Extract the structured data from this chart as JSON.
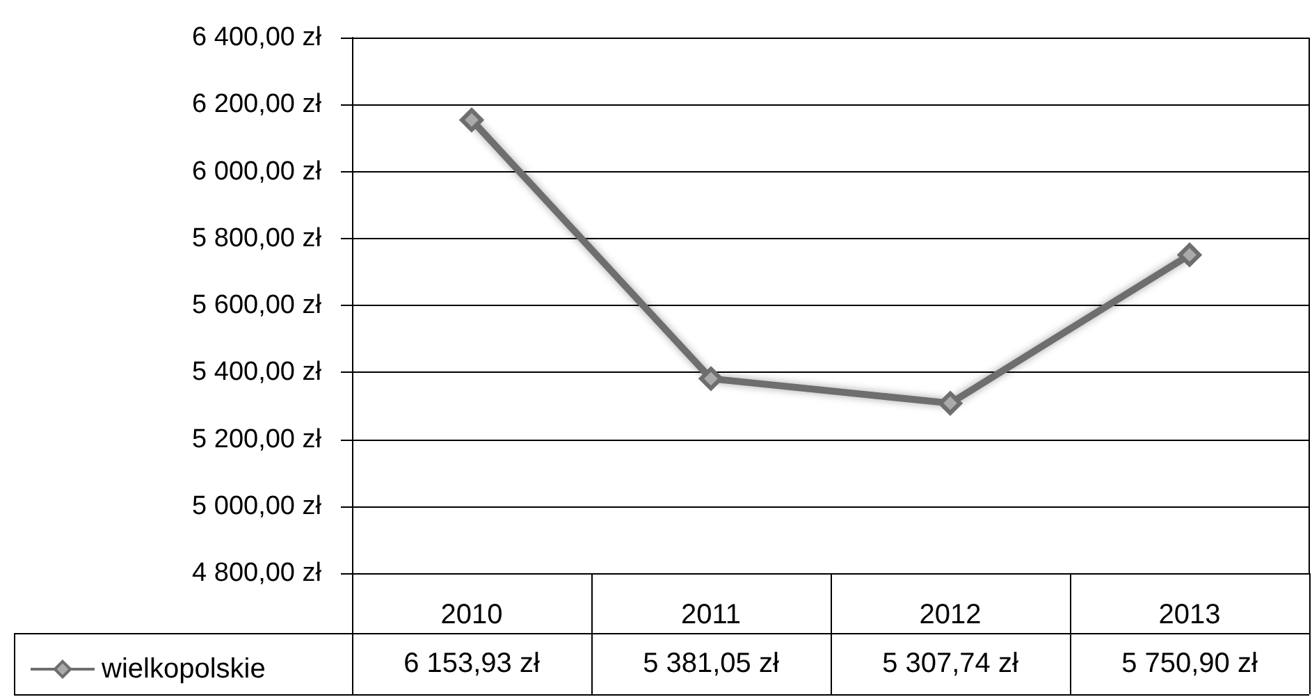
{
  "chart_data": {
    "type": "line",
    "categories": [
      "2010",
      "2011",
      "2012",
      "2013"
    ],
    "series": [
      {
        "name": "wielkopolskie",
        "color": "#6e6e6e",
        "values": [
          6153.93,
          5381.05,
          5307.74,
          5750.9
        ],
        "value_labels": [
          "6 153,93 zł",
          "5 381,05 zł",
          "5 307,74 zł",
          "5 750,90 zł"
        ]
      }
    ],
    "ylim": [
      4800,
      6400
    ],
    "yticks": [
      {
        "value": 4800,
        "label": "4 800,00 zł"
      },
      {
        "value": 5000,
        "label": "5 000,00 zł"
      },
      {
        "value": 5200,
        "label": "5 200,00 zł"
      },
      {
        "value": 5400,
        "label": "5 400,00 zł"
      },
      {
        "value": 5600,
        "label": "5 600,00 zł"
      },
      {
        "value": 5800,
        "label": "5 800,00 zł"
      },
      {
        "value": 6000,
        "label": "6 000,00 zł"
      },
      {
        "value": 6200,
        "label": "6 200,00 zł"
      },
      {
        "value": 6400,
        "label": "6 400,00 zł"
      }
    ],
    "grid": "y",
    "legend": "bottom",
    "marker": "diamond",
    "line_style": "solid"
  }
}
